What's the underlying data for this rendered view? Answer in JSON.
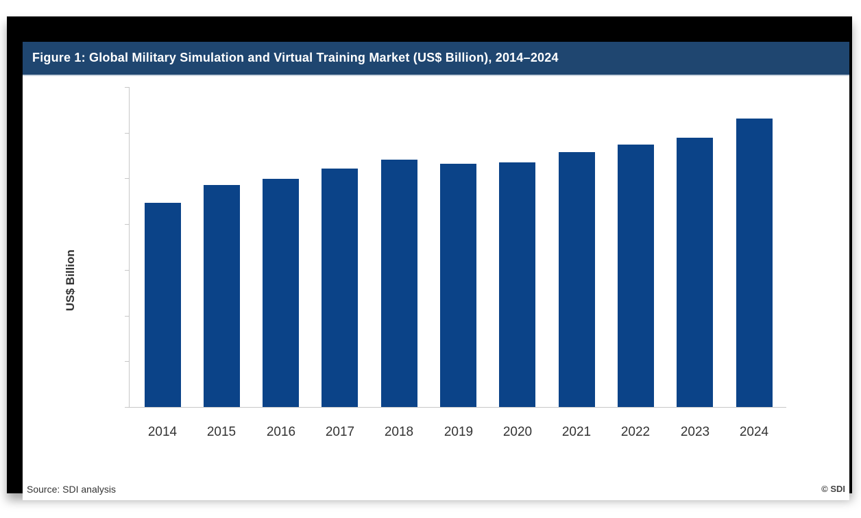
{
  "figure": {
    "title": "Figure 1: Global Military Simulation and Virtual Training Market (US$ Billion), 2014–2024",
    "source": "Source: SDI analysis",
    "copyright": "© SDI",
    "bar_color": "#0b4388",
    "header_color": "#1f4670"
  },
  "chart_data": {
    "type": "bar",
    "title": "Figure 1: Global Military Simulation and Virtual Training Market (US$ Billion), 2014–2024",
    "xlabel": "",
    "ylabel": "US$ Billion",
    "categories": [
      "2014",
      "2015",
      "2016",
      "2017",
      "2018",
      "2019",
      "2020",
      "2021",
      "2022",
      "2023",
      "2024"
    ],
    "values": [
      4.47,
      4.86,
      4.99,
      5.22,
      5.41,
      5.32,
      5.35,
      5.58,
      5.74,
      5.89,
      6.31
    ],
    "value_units_note": "y-axis has 7 unlabeled tick intervals; values estimated in tick units",
    "ylim": [
      0,
      7
    ],
    "y_tick_count": 8,
    "y_tick_labels_visible": false,
    "grid": false,
    "legend": null,
    "source": "Source: SDI analysis",
    "copyright": "© SDI"
  }
}
